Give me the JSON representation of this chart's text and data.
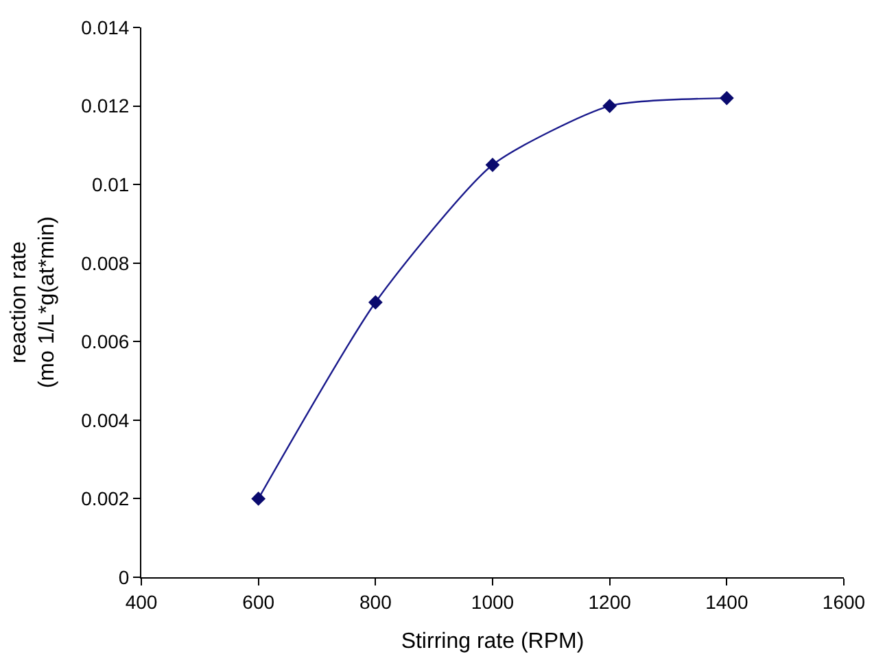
{
  "chart_data": {
    "type": "line",
    "xlabel": "Stirring rate (RPM)",
    "ylabel": "reaction rate\n(mo 1/L*g(at*min)",
    "x": [
      600,
      800,
      1000,
      1200,
      1400
    ],
    "series": [
      {
        "color": "#1a1a8c",
        "values": [
          0.002,
          0.007,
          0.0105,
          0.012,
          0.0122
        ]
      }
    ],
    "xlim": [
      400,
      1600
    ],
    "xticks": [
      400,
      600,
      800,
      1000,
      1200,
      1400,
      1600
    ],
    "ylim": [
      0,
      0.014
    ],
    "yticks": [
      0,
      0.002,
      0.004,
      0.006,
      0.008,
      0.01,
      0.012,
      0.014
    ],
    "marker": "diamond",
    "line_style": "solid",
    "legend": false
  }
}
